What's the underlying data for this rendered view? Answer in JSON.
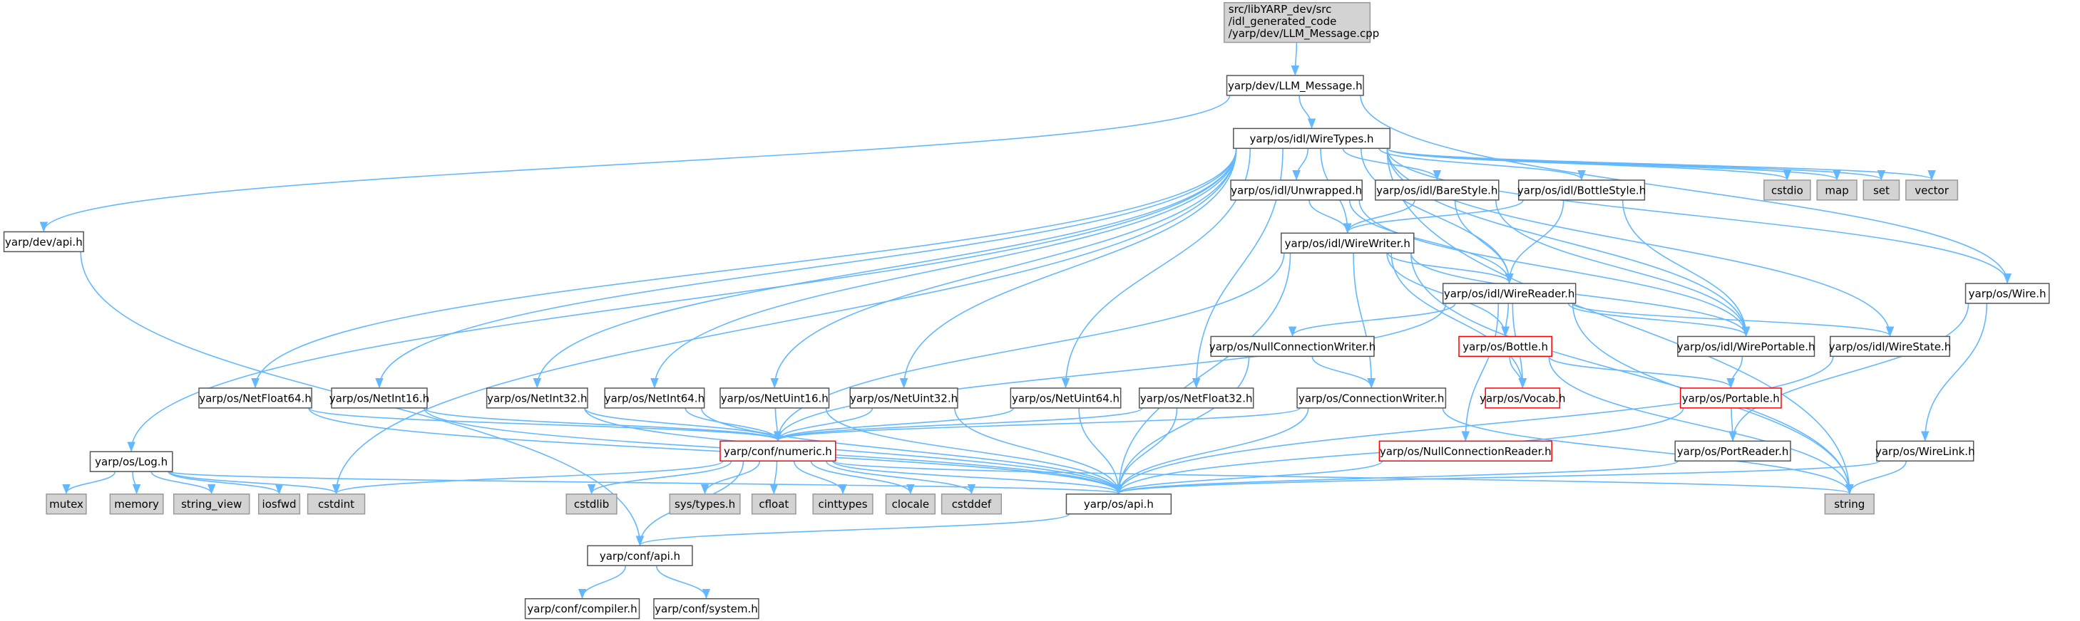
{
  "nodes": [
    {
      "lines": [
        "src/libYARP_dev/src",
        "/idl_generated_code",
        "/yarp/dev/LLM_Message.cpp"
      ]
    },
    {
      "label": "yarp/dev/LLM_Message.h"
    },
    {
      "label": "yarp/os/idl/WireTypes.h"
    },
    {
      "label": "yarp/dev/api.h"
    },
    {
      "label": "yarp/os/Log.h"
    },
    {
      "label": "yarp/os/NetFloat64.h"
    },
    {
      "label": "yarp/os/NetInt16.h"
    },
    {
      "label": "yarp/os/NetInt32.h"
    },
    {
      "label": "yarp/os/NetInt64.h"
    },
    {
      "label": "yarp/os/NetUint16.h"
    },
    {
      "label": "yarp/os/NetUint32.h"
    },
    {
      "label": "yarp/os/NetUint64.h"
    },
    {
      "label": "yarp/os/NetFloat32.h"
    },
    {
      "label": "yarp/os/idl/Unwrapped.h"
    },
    {
      "label": "yarp/os/idl/BareStyle.h"
    },
    {
      "label": "yarp/os/idl/BottleStyle.h"
    },
    {
      "label": "cstdio"
    },
    {
      "label": "map"
    },
    {
      "label": "set"
    },
    {
      "label": "vector"
    },
    {
      "label": "yarp/os/idl/WireWriter.h"
    },
    {
      "label": "yarp/os/idl/WireReader.h"
    },
    {
      "label": "yarp/os/Wire.h"
    },
    {
      "label": "yarp/os/NullConnectionWriter.h"
    },
    {
      "label": "yarp/os/Bottle.h"
    },
    {
      "label": "yarp/os/idl/WirePortable.h"
    },
    {
      "label": "yarp/os/idl/WireState.h"
    },
    {
      "label": "yarp/os/ConnectionWriter.h"
    },
    {
      "label": "yarp/os/Vocab.h"
    },
    {
      "label": "yarp/os/Portable.h"
    },
    {
      "label": "yarp/conf/numeric.h"
    },
    {
      "label": "yarp/os/NullConnectionReader.h"
    },
    {
      "label": "yarp/os/PortReader.h"
    },
    {
      "label": "yarp/os/WireLink.h"
    },
    {
      "label": "mutex"
    },
    {
      "label": "memory"
    },
    {
      "label": "string_view"
    },
    {
      "label": "iosfwd"
    },
    {
      "label": "cstdint"
    },
    {
      "label": "cstdlib"
    },
    {
      "label": "sys/types.h"
    },
    {
      "label": "cfloat"
    },
    {
      "label": "cinttypes"
    },
    {
      "label": "clocale"
    },
    {
      "label": "cstddef"
    },
    {
      "label": "yarp/os/api.h"
    },
    {
      "label": "string"
    },
    {
      "label": "yarp/conf/api.h"
    },
    {
      "label": "yarp/conf/compiler.h"
    },
    {
      "label": "yarp/conf/system.h"
    }
  ]
}
